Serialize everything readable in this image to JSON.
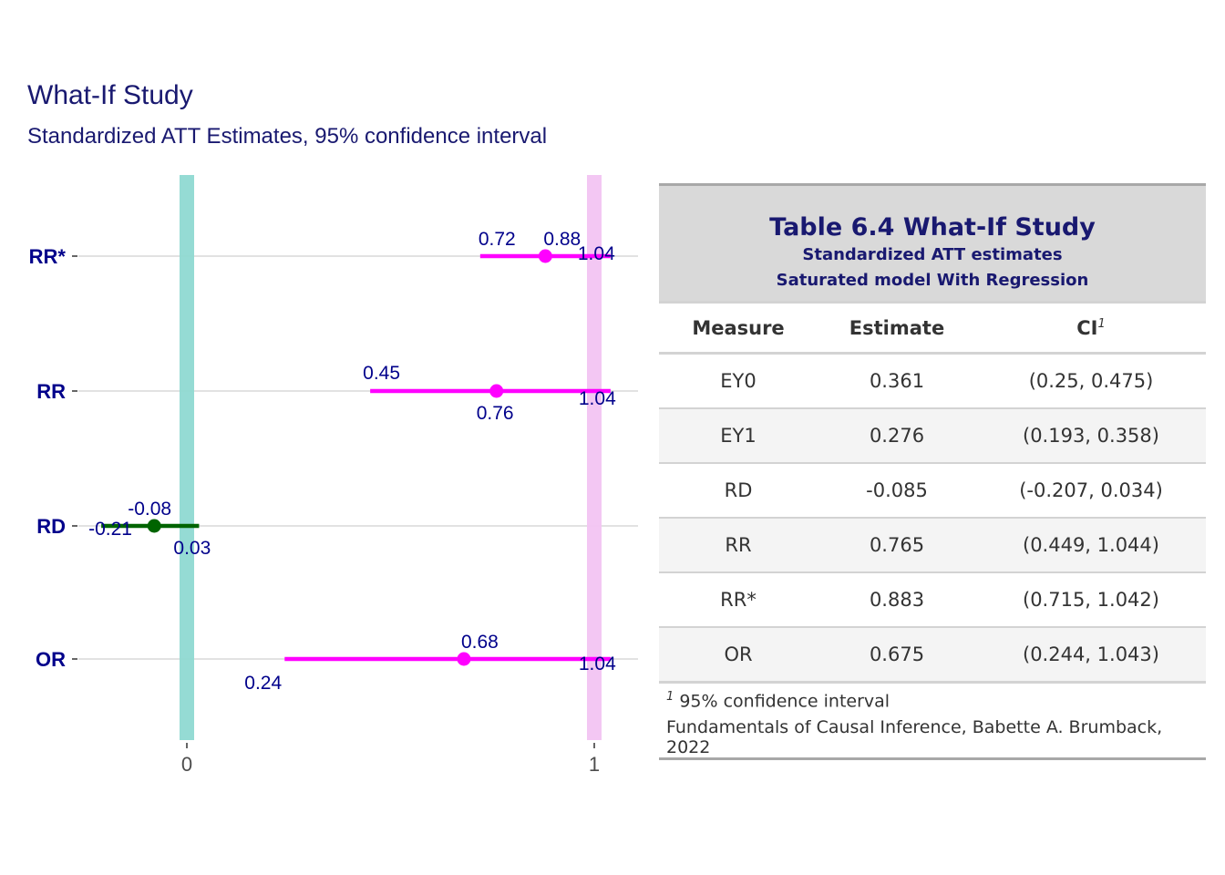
{
  "chart_data": [
    {
      "type": "forest",
      "title": "What-If Study",
      "subtitle": "Standardized ATT Estimates, 95% confidence interval",
      "xlabel": "",
      "ylabel": "",
      "xlim": [
        -0.28,
        1.1
      ],
      "x_ticks": [
        "0",
        "1"
      ],
      "categories": [
        "RR*",
        "RR",
        "RD",
        "OR"
      ],
      "reference_bands": [
        {
          "at": 0,
          "color": "#8fd9d2"
        },
        {
          "at": 1,
          "color": "#f2c4f2"
        }
      ],
      "series": [
        {
          "values": [
            {
              "label": "RR*",
              "estimate": 0.88,
              "lower": 0.72,
              "upper": 1.04,
              "est_label": "0.88",
              "lo_label": "0.72",
              "hi_label": "1.04",
              "color": "#ff00ff"
            },
            {
              "label": "RR",
              "estimate": 0.76,
              "lower": 0.45,
              "upper": 1.04,
              "est_label": "0.76",
              "lo_label": "0.45",
              "hi_label": "1.04",
              "color": "#ff00ff"
            },
            {
              "label": "RD",
              "estimate": -0.08,
              "lower": -0.21,
              "upper": 0.03,
              "est_label": "-0.08",
              "lo_label": "-0.21",
              "hi_label": "0.03",
              "color": "#006400"
            },
            {
              "label": "OR",
              "estimate": 0.68,
              "lower": 0.24,
              "upper": 1.04,
              "est_label": "0.68",
              "lo_label": "0.24",
              "hi_label": "1.04",
              "color": "#ff00ff"
            }
          ]
        }
      ]
    },
    {
      "type": "table",
      "title": "Table 6.4 What-If Study",
      "subtitle_lines": [
        "Standardized ATT estimates",
        "Saturated model With Regression"
      ],
      "columns": [
        "Measure",
        "Estimate",
        "CI"
      ],
      "ci_footnote_mark": "1",
      "rows": [
        [
          "EY0",
          "0.361",
          "(0.25, 0.475)"
        ],
        [
          "EY1",
          "0.276",
          "(0.193, 0.358)"
        ],
        [
          "RD",
          "-0.085",
          "(-0.207, 0.034)"
        ],
        [
          "RR",
          "0.765",
          "(0.449, 1.044)"
        ],
        [
          "RR*",
          "0.883",
          "(0.715, 1.042)"
        ],
        [
          "OR",
          "0.675",
          "(0.244, 1.043)"
        ]
      ],
      "footnote_mark": "1",
      "footnote": "95% confidence interval",
      "source_note": "Fundamentals of Causal Inference, Babette A. Brumback, 2022"
    }
  ],
  "colors": {
    "title": "#191970",
    "axis_label": "#00008b",
    "value_label": "#00008b",
    "gridline": "#d9d9d9",
    "table_header_bg": "#d9d9d9",
    "table_stripe": "#f4f4f4"
  }
}
